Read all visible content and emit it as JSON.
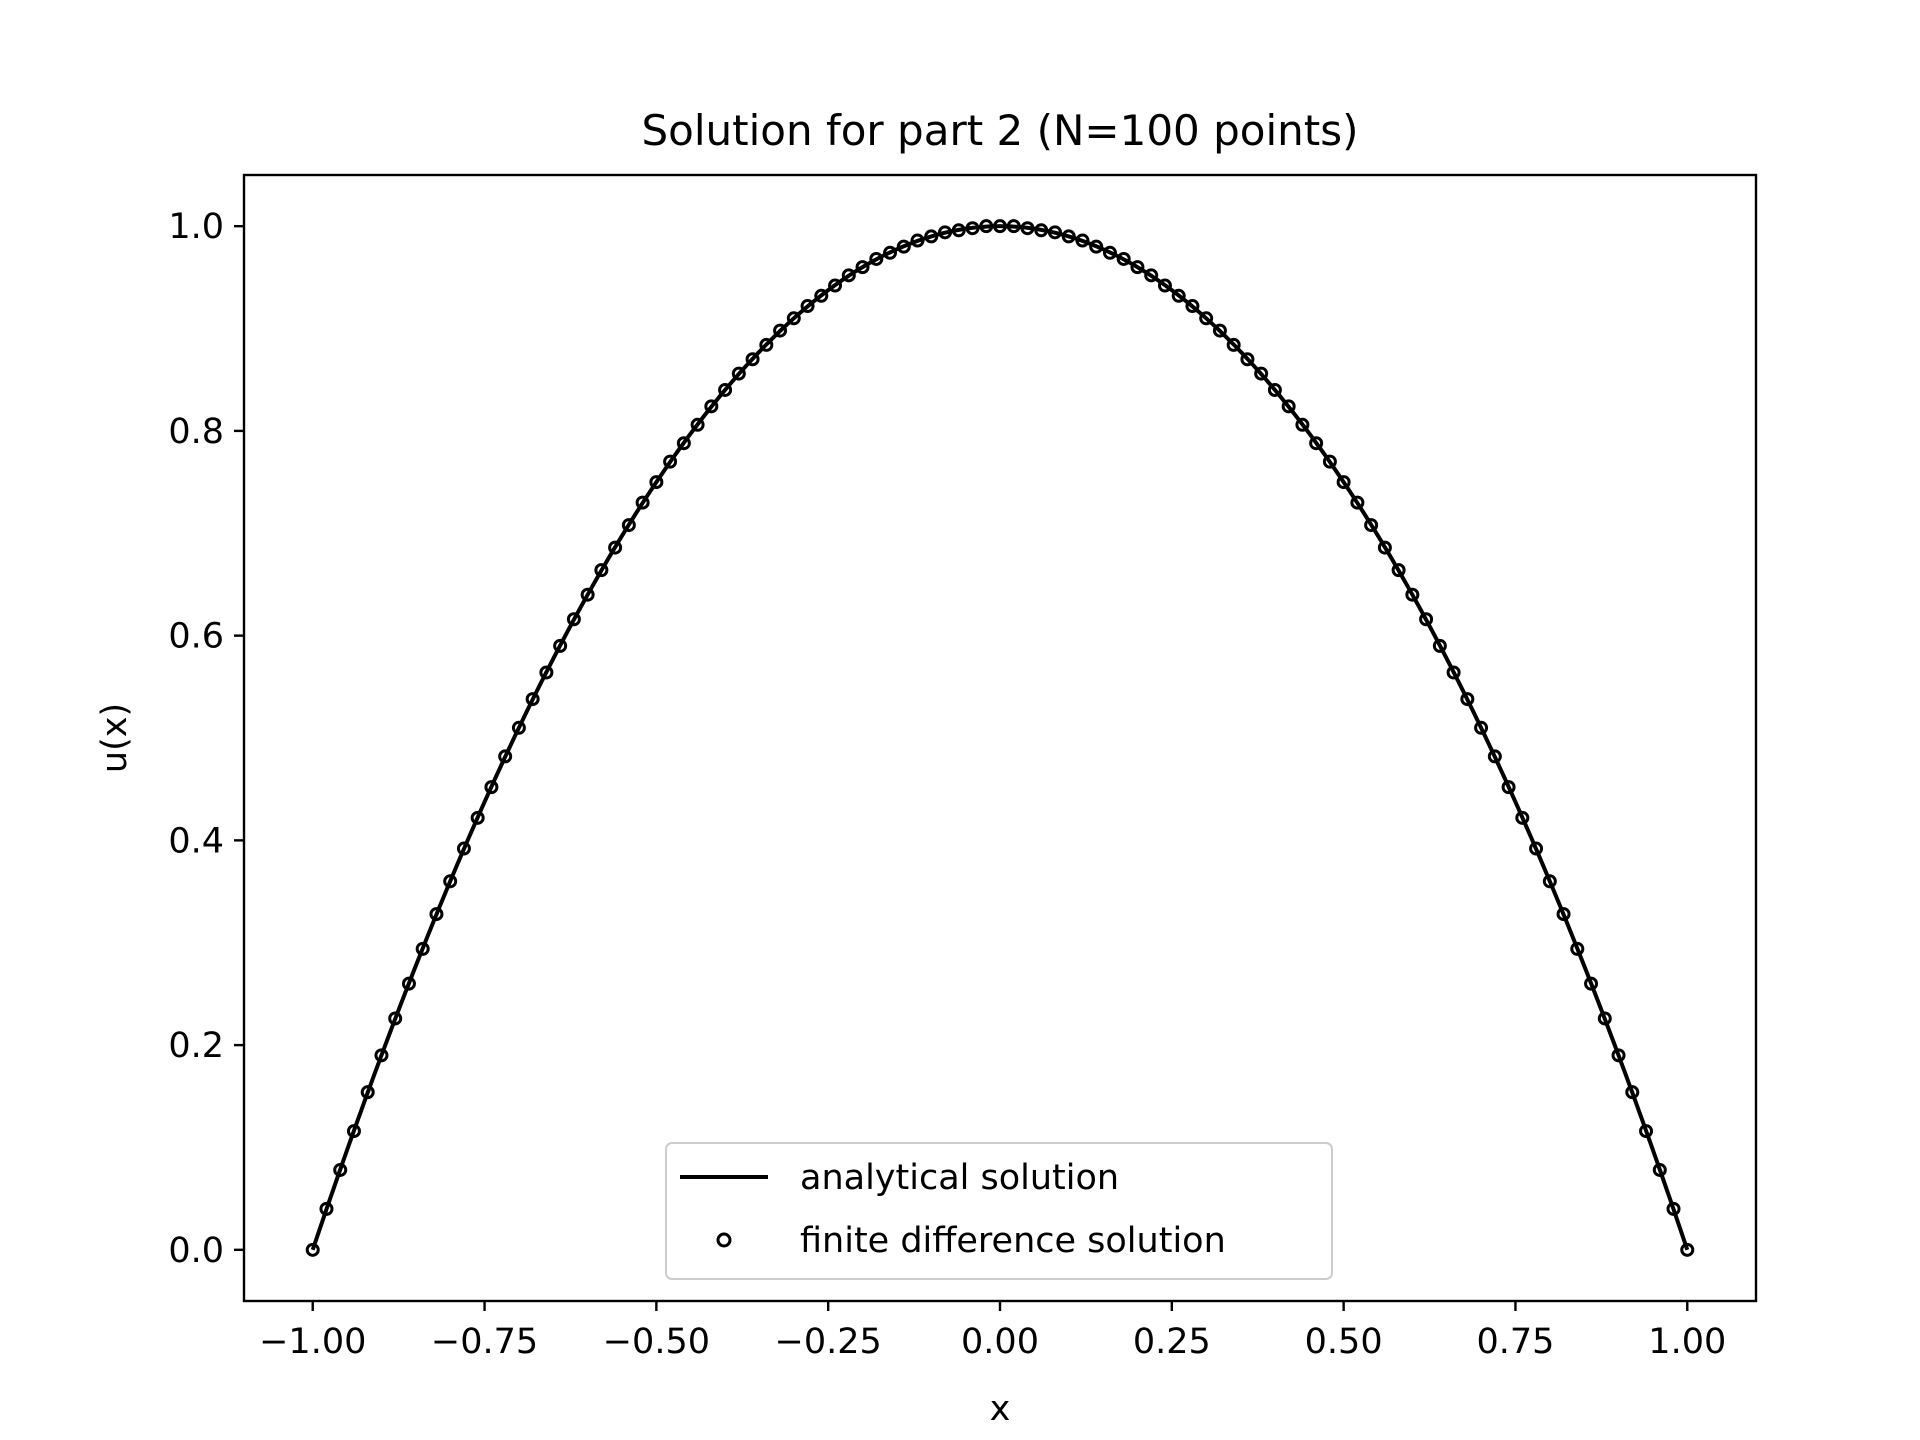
{
  "chart_data": {
    "type": "line",
    "title": "Solution for part 2 (N=100 points)",
    "xlabel": "x",
    "ylabel": "u(x)",
    "xlim": [
      -1.1,
      1.1
    ],
    "ylim": [
      -0.05,
      1.05
    ],
    "xticks": [
      -1.0,
      -0.75,
      -0.5,
      -0.25,
      0.0,
      0.25,
      0.5,
      0.75,
      1.0
    ],
    "xtick_labels": [
      "−1.00",
      "−0.75",
      "−0.50",
      "−0.25",
      "0.00",
      "0.25",
      "0.50",
      "0.75",
      "1.00"
    ],
    "yticks": [
      0.0,
      0.2,
      0.4,
      0.6,
      0.8,
      1.0
    ],
    "ytick_labels": [
      "0.0",
      "0.2",
      "0.4",
      "0.6",
      "0.8",
      "1.0"
    ],
    "grid": false,
    "legend_placement": "lower center",
    "series": [
      {
        "name": "analytical solution",
        "style": "solid line",
        "color": "#000000",
        "x": [
          -1.0,
          -0.9,
          -0.8,
          -0.7,
          -0.6,
          -0.5,
          -0.4,
          -0.3,
          -0.2,
          -0.1,
          0.0,
          0.1,
          0.2,
          0.3,
          0.4,
          0.5,
          0.6,
          0.7,
          0.8,
          0.9,
          1.0
        ],
        "y": [
          0.0,
          0.19,
          0.36,
          0.51,
          0.64,
          0.75,
          0.84,
          0.91,
          0.96,
          0.99,
          1.0,
          0.99,
          0.96,
          0.91,
          0.84,
          0.75,
          0.64,
          0.51,
          0.36,
          0.19,
          0.0
        ]
      },
      {
        "name": "finite difference solution",
        "style": "hollow circle markers",
        "color": "#000000",
        "x": [
          -1.0,
          -0.98,
          -0.96,
          -0.94,
          -0.92,
          -0.9,
          -0.88,
          -0.86,
          -0.84,
          -0.82,
          -0.8,
          -0.78,
          -0.76,
          -0.74,
          -0.72,
          -0.7,
          -0.68,
          -0.66,
          -0.64,
          -0.62,
          -0.6,
          -0.58,
          -0.56,
          -0.54,
          -0.52,
          -0.5,
          -0.48,
          -0.46,
          -0.44,
          -0.42,
          -0.4,
          -0.38,
          -0.36,
          -0.34,
          -0.32,
          -0.3,
          -0.28,
          -0.26,
          -0.24,
          -0.22,
          -0.2,
          -0.18,
          -0.16,
          -0.14,
          -0.12,
          -0.1,
          -0.08,
          -0.06,
          -0.04,
          -0.02,
          0.0,
          0.02,
          0.04,
          0.06,
          0.08,
          0.1,
          0.12,
          0.14,
          0.16,
          0.18,
          0.2,
          0.22,
          0.24,
          0.26,
          0.28,
          0.3,
          0.32,
          0.34,
          0.36,
          0.38,
          0.4,
          0.42,
          0.44,
          0.46,
          0.48,
          0.5,
          0.52,
          0.54,
          0.56,
          0.58,
          0.6,
          0.62,
          0.64,
          0.66,
          0.68,
          0.7,
          0.72,
          0.74,
          0.76,
          0.78,
          0.8,
          0.82,
          0.84,
          0.86,
          0.88,
          0.9,
          0.92,
          0.94,
          0.96,
          0.98,
          1.0
        ],
        "y": [
          0.0,
          0.04,
          0.078,
          0.116,
          0.154,
          0.19,
          0.226,
          0.26,
          0.294,
          0.328,
          0.36,
          0.392,
          0.422,
          0.452,
          0.482,
          0.51,
          0.538,
          0.564,
          0.59,
          0.616,
          0.64,
          0.664,
          0.686,
          0.708,
          0.73,
          0.75,
          0.77,
          0.788,
          0.806,
          0.824,
          0.84,
          0.856,
          0.87,
          0.884,
          0.898,
          0.91,
          0.922,
          0.932,
          0.942,
          0.952,
          0.96,
          0.968,
          0.974,
          0.98,
          0.986,
          0.99,
          0.994,
          0.996,
          0.998,
          1.0,
          1.0,
          1.0,
          0.998,
          0.996,
          0.994,
          0.99,
          0.986,
          0.98,
          0.974,
          0.968,
          0.96,
          0.952,
          0.942,
          0.932,
          0.922,
          0.91,
          0.898,
          0.884,
          0.87,
          0.856,
          0.84,
          0.824,
          0.806,
          0.788,
          0.77,
          0.75,
          0.73,
          0.708,
          0.686,
          0.664,
          0.64,
          0.616,
          0.59,
          0.564,
          0.538,
          0.51,
          0.482,
          0.452,
          0.422,
          0.392,
          0.36,
          0.328,
          0.294,
          0.26,
          0.226,
          0.19,
          0.154,
          0.116,
          0.078,
          0.04,
          0.0
        ]
      }
    ]
  }
}
